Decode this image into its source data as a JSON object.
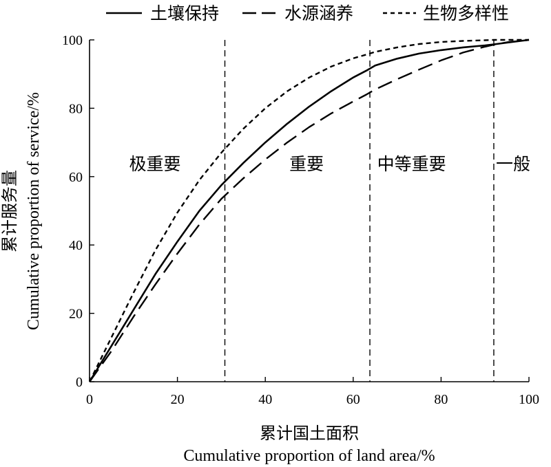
{
  "chart_data": {
    "type": "line",
    "xlabel_zh": "累计国土面积",
    "xlabel_en": "Cumulative proportion of land area/%",
    "ylabel_zh": "累计服务量",
    "ylabel_en": "Cumulative proportion of service/%",
    "xlim": [
      0,
      100
    ],
    "ylim": [
      0,
      100
    ],
    "xticks": [
      0,
      20,
      40,
      60,
      80,
      100
    ],
    "yticks": [
      0,
      20,
      40,
      60,
      80,
      100
    ],
    "legend_position": "top",
    "series": [
      {
        "name": "土壤保持",
        "style": "solid",
        "x": [
          0,
          5,
          10,
          15,
          20,
          25,
          30,
          35,
          40,
          45,
          50,
          55,
          60,
          63,
          65,
          70,
          75,
          80,
          85,
          90,
          92,
          95,
          100
        ],
        "y": [
          0,
          10.5,
          21,
          31.5,
          41,
          50,
          57.5,
          64,
          70,
          75.5,
          80.5,
          85,
          89,
          91,
          92.5,
          94.5,
          96,
          97,
          97.8,
          98.4,
          98.7,
          99.2,
          100
        ]
      },
      {
        "name": "水源涵养",
        "style": "dashed",
        "x": [
          0,
          5,
          10,
          15,
          20,
          25,
          30,
          35,
          40,
          45,
          50,
          55,
          60,
          63,
          65,
          70,
          75,
          80,
          85,
          90,
          92,
          95,
          100
        ],
        "y": [
          0,
          9,
          19,
          28.5,
          37.5,
          46,
          53.5,
          59.5,
          65,
          70,
          74.5,
          78.5,
          82,
          84,
          85.5,
          88.5,
          91.3,
          94,
          96.3,
          98,
          98.6,
          99.3,
          100
        ]
      },
      {
        "name": "生物多样性",
        "style": "dotted",
        "x": [
          0,
          5,
          10,
          15,
          20,
          25,
          30,
          35,
          40,
          45,
          50,
          55,
          60,
          63,
          65,
          70,
          75,
          80,
          85,
          90,
          92,
          95,
          100
        ],
        "y": [
          0,
          13,
          26,
          38.5,
          49.5,
          59,
          67,
          74,
          80,
          85,
          89,
          92.2,
          94.6,
          95.7,
          96.5,
          97.8,
          98.8,
          99.4,
          99.7,
          99.9,
          100,
          100,
          100
        ]
      }
    ],
    "vlines": [
      30.8,
      63.8,
      92
    ],
    "zones": [
      {
        "label": "极重要",
        "x": 14.9,
        "y": 62
      },
      {
        "label": "重要",
        "x": 49.4,
        "y": 62
      },
      {
        "label": "中等重要",
        "x": 73.3,
        "y": 62
      },
      {
        "label": "一般",
        "x": 96.4,
        "y": 62
      }
    ]
  }
}
